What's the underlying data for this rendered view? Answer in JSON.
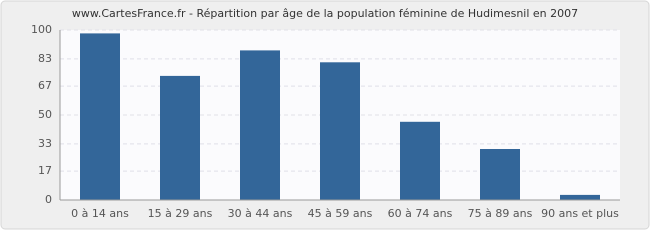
{
  "chart_data": {
    "type": "bar",
    "title": "www.CartesFrance.fr - Répartition par âge de la population féminine de Hudimesnil en 2007",
    "categories": [
      "0 à 14 ans",
      "15 à 29 ans",
      "30 à 44 ans",
      "45 à 59 ans",
      "60 à 74 ans",
      "75 à 89 ans",
      "90 ans et plus"
    ],
    "values": [
      98,
      73,
      88,
      81,
      46,
      30,
      3
    ],
    "color": "#336699",
    "ylim": [
      0,
      100
    ],
    "yticks": [
      0,
      17,
      33,
      50,
      67,
      83,
      100
    ],
    "grid": true
  }
}
